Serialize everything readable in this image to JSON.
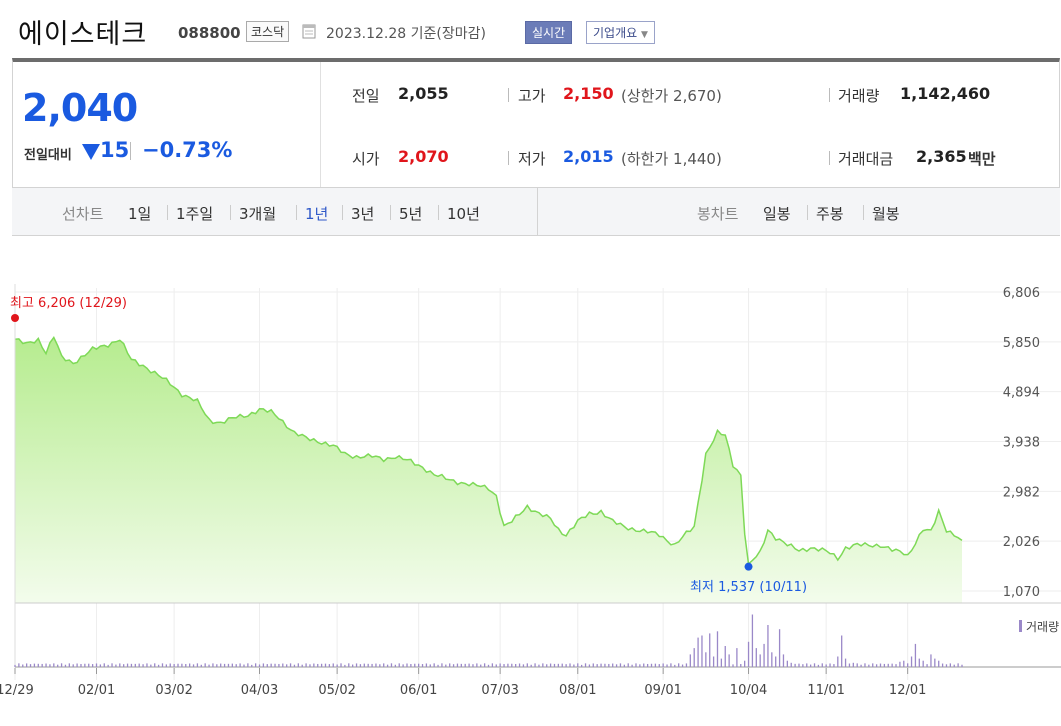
{
  "header": {
    "company": "에이스테크",
    "code": "088800",
    "market": "코스닥",
    "date": "2023.12.28 기준(장마감)",
    "realtime": "실시간",
    "overview": "기업개요"
  },
  "quote": {
    "price": "2,040",
    "compare_label": "전일대비",
    "change": "15",
    "change_pct": "−0.73%",
    "prev_close_label": "전일",
    "prev_close": "2,055",
    "open_label": "시가",
    "open": "2,070",
    "high_label": "고가",
    "high": "2,150",
    "upper_limit": "(상한가 2,670)",
    "low_label": "저가",
    "low": "2,015",
    "lower_limit": "(하한가 1,440)",
    "volume_label": "거래량",
    "volume": "1,142,460",
    "amount_label": "거래대금",
    "amount": "2,365",
    "amount_unit": "백만"
  },
  "line_periods": {
    "title": "선차트",
    "items": [
      "1일",
      "1주일",
      "3개월",
      "1년",
      "3년",
      "5년",
      "10년"
    ],
    "active": "1년"
  },
  "candle_periods": {
    "title": "봉차트",
    "items": [
      "일봉",
      "주봉",
      "월봉"
    ]
  },
  "colors": {
    "up": "#e0151b",
    "down": "#1a5ae0",
    "line": "#7ed957",
    "volume": "#9a88c8",
    "active_tab": "#2e58c8"
  },
  "chart_data": {
    "type": "area",
    "yticks": [
      6806,
      5850,
      4894,
      3938,
      2982,
      2026,
      1070
    ],
    "ylim": [
      1070,
      6806
    ],
    "xticks": [
      "12/29",
      "02/01",
      "03/02",
      "04/03",
      "05/02",
      "06/01",
      "07/03",
      "08/01",
      "09/01",
      "10/04",
      "11/01",
      "12/01"
    ],
    "x_index": [
      0,
      21,
      41,
      63,
      83,
      104,
      125,
      145,
      167,
      189,
      209,
      230
    ],
    "n_points": 245,
    "price_keys": [
      [
        0,
        5900
      ],
      [
        3,
        5800
      ],
      [
        6,
        5900
      ],
      [
        8,
        5650
      ],
      [
        10,
        5950
      ],
      [
        12,
        5550
      ],
      [
        15,
        5450
      ],
      [
        20,
        5700
      ],
      [
        24,
        5800
      ],
      [
        27,
        5900
      ],
      [
        30,
        5500
      ],
      [
        33,
        5400
      ],
      [
        37,
        5200
      ],
      [
        40,
        5050
      ],
      [
        43,
        4850
      ],
      [
        47,
        4700
      ],
      [
        50,
        4350
      ],
      [
        53,
        4300
      ],
      [
        57,
        4400
      ],
      [
        60,
        4450
      ],
      [
        63,
        4550
      ],
      [
        66,
        4500
      ],
      [
        68,
        4400
      ],
      [
        72,
        4100
      ],
      [
        75,
        4000
      ],
      [
        78,
        3950
      ],
      [
        82,
        3850
      ],
      [
        85,
        3700
      ],
      [
        88,
        3650
      ],
      [
        92,
        3650
      ],
      [
        95,
        3600
      ],
      [
        98,
        3650
      ],
      [
        102,
        3550
      ],
      [
        105,
        3450
      ],
      [
        108,
        3300
      ],
      [
        112,
        3200
      ],
      [
        115,
        3150
      ],
      [
        118,
        3100
      ],
      [
        122,
        3050
      ],
      [
        124,
        2900
      ],
      [
        126,
        2300
      ],
      [
        128,
        2400
      ],
      [
        132,
        2700
      ],
      [
        135,
        2550
      ],
      [
        138,
        2450
      ],
      [
        140,
        2250
      ],
      [
        142,
        2150
      ],
      [
        145,
        2400
      ],
      [
        148,
        2550
      ],
      [
        151,
        2600
      ],
      [
        154,
        2400
      ],
      [
        157,
        2300
      ],
      [
        160,
        2250
      ],
      [
        163,
        2200
      ],
      [
        166,
        2150
      ],
      [
        168,
        2050
      ],
      [
        170,
        1950
      ],
      [
        172,
        2100
      ],
      [
        175,
        2300
      ],
      [
        178,
        3700
      ],
      [
        181,
        4100
      ],
      [
        183,
        4050
      ],
      [
        185,
        3500
      ],
      [
        187,
        3300
      ],
      [
        188,
        2200
      ],
      [
        189,
        1550
      ],
      [
        190,
        1650
      ],
      [
        192,
        1800
      ],
      [
        194,
        2250
      ],
      [
        196,
        2100
      ],
      [
        199,
        1950
      ],
      [
        202,
        1850
      ],
      [
        205,
        1900
      ],
      [
        208,
        1850
      ],
      [
        210,
        1800
      ],
      [
        212,
        1700
      ],
      [
        214,
        1900
      ],
      [
        217,
        1950
      ],
      [
        220,
        1950
      ],
      [
        223,
        1950
      ],
      [
        226,
        1850
      ],
      [
        229,
        1800
      ],
      [
        230,
        1750
      ],
      [
        232,
        2000
      ],
      [
        234,
        2250
      ],
      [
        236,
        2200
      ],
      [
        238,
        2600
      ],
      [
        240,
        2250
      ],
      [
        242,
        2150
      ],
      [
        244,
        2040
      ]
    ],
    "high_annotation": {
      "label": "최고",
      "value": "6,206",
      "date": "(12/29)",
      "x_index": 0,
      "value_num": 6206
    },
    "low_annotation": {
      "label": "최저",
      "value": "1,537",
      "date": "(10/11)",
      "x_index": 189,
      "value_num": 1537
    },
    "volume_legend": "거래량",
    "volume_baseline": 2,
    "volume_spikes": [
      [
        174,
        12
      ],
      [
        175,
        18
      ],
      [
        176,
        28
      ],
      [
        177,
        30
      ],
      [
        178,
        14
      ],
      [
        179,
        32
      ],
      [
        180,
        10
      ],
      [
        181,
        34
      ],
      [
        182,
        8
      ],
      [
        183,
        20
      ],
      [
        184,
        12
      ],
      [
        186,
        18
      ],
      [
        188,
        6
      ],
      [
        189,
        24
      ],
      [
        190,
        50
      ],
      [
        191,
        18
      ],
      [
        192,
        12
      ],
      [
        193,
        22
      ],
      [
        194,
        40
      ],
      [
        195,
        14
      ],
      [
        196,
        10
      ],
      [
        197,
        36
      ],
      [
        198,
        12
      ],
      [
        199,
        6
      ],
      [
        200,
        4
      ],
      [
        212,
        10
      ],
      [
        213,
        30
      ],
      [
        214,
        8
      ],
      [
        216,
        4
      ],
      [
        228,
        5
      ],
      [
        229,
        6
      ],
      [
        231,
        10
      ],
      [
        232,
        22
      ],
      [
        233,
        8
      ],
      [
        234,
        6
      ],
      [
        236,
        12
      ],
      [
        237,
        8
      ],
      [
        238,
        6
      ]
    ]
  }
}
